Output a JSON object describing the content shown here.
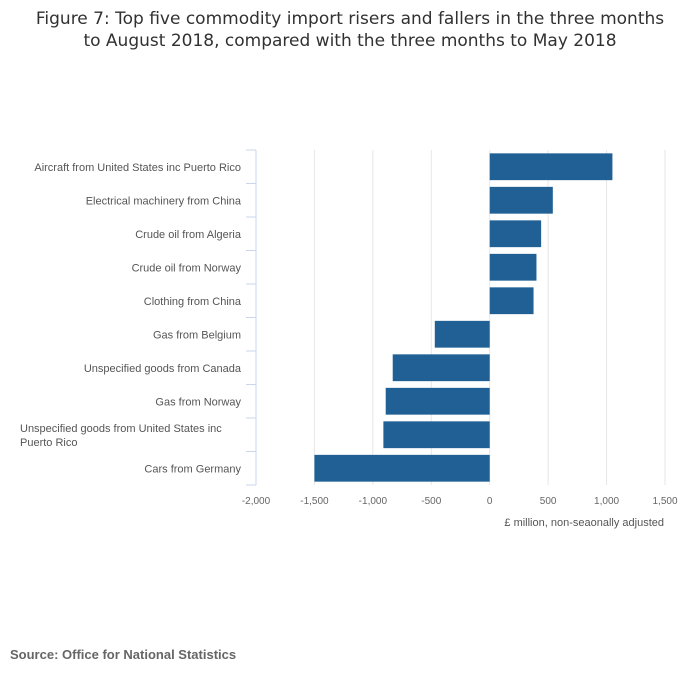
{
  "title_lines": [
    "Figure 7: Top five commodity import risers and fallers in the three months",
    "to August 2018, compared with the three months to May 2018"
  ],
  "source": "Source: Office for National Statistics",
  "colors": {
    "bar": "#206095",
    "grid": "#e6e6e6",
    "axis": "#ccd6eb"
  },
  "chart_data": {
    "type": "bar",
    "orientation": "horizontal",
    "title": "Top five commodity import risers and fallers in the three months to August 2018, compared with the three months to May 2018",
    "categories": [
      "Aircraft from United States inc Puerto Rico",
      "Electrical machinery from China",
      "Crude oil from Algeria",
      "Crude oil from Norway",
      "Clothing from China",
      "Gas from Belgium",
      "Unspecified goods from Canada",
      "Gas from Norway",
      "Unspecified goods from United States inc Puerto Rico",
      "Cars from Germany"
    ],
    "values": [
      1050,
      540,
      440,
      400,
      375,
      -470,
      -830,
      -890,
      -910,
      -1500
    ],
    "xlabel": "£ million, non-seaonally adjusted",
    "ylabel": "",
    "xlim": [
      -2000,
      1500
    ],
    "xticks": [
      -2000,
      -1500,
      -1000,
      -500,
      0,
      500,
      1000,
      1500
    ],
    "xtick_labels": [
      "-2,000",
      "-1,500",
      "-1,000",
      "-500",
      "0",
      "500",
      "1,000",
      "1,500"
    ],
    "grid": true,
    "legend": "none"
  }
}
